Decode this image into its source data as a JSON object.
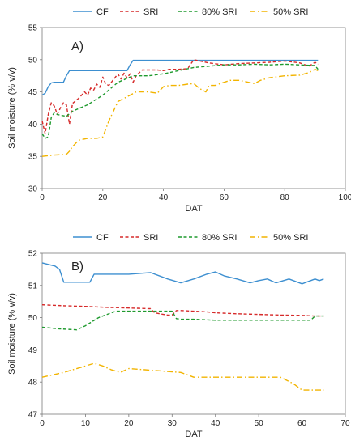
{
  "chart_data": [
    {
      "type": "line",
      "panel_label": "A)",
      "xlabel": "DAT",
      "ylabel": "Soil moisture (% v/v)",
      "xlim": [
        0,
        100
      ],
      "ylim": [
        30,
        55
      ],
      "xticks": [
        "0",
        "20",
        "40",
        "60",
        "80",
        "100"
      ],
      "yticks": [
        "30",
        "35",
        "40",
        "45",
        "50",
        "55"
      ],
      "grid": false,
      "legend": "top",
      "series": [
        {
          "name": "CF",
          "color": "#3d8fd0",
          "dash": "solid",
          "x": [
            0,
            1,
            2,
            3,
            4,
            7,
            8,
            9,
            28,
            29,
            30,
            50,
            70,
            91
          ],
          "y": [
            44.5,
            44.8,
            45.8,
            46.4,
            46.5,
            46.5,
            47.5,
            48.3,
            48.3,
            49.2,
            49.9,
            49.9,
            49.9,
            49.9
          ]
        },
        {
          "name": "SRI",
          "color": "#d62a2a",
          "dash": "dashed",
          "x": [
            0,
            1,
            2,
            3,
            4,
            5,
            6,
            7,
            8,
            9,
            10,
            12,
            14,
            15,
            16,
            17,
            18,
            19,
            20,
            21,
            22,
            24,
            25,
            26,
            27,
            28,
            29,
            30,
            31,
            33,
            35,
            38,
            40,
            42,
            45,
            48,
            50,
            55,
            60,
            65,
            70,
            75,
            80,
            85,
            88,
            90,
            91
          ],
          "y": [
            40.5,
            38.5,
            41.5,
            43.3,
            42.8,
            41.5,
            42.5,
            43.3,
            43.0,
            40.0,
            43.2,
            44.0,
            45.0,
            44.5,
            45.6,
            45.3,
            46.2,
            45.7,
            47.3,
            46.2,
            46.0,
            47.2,
            47.8,
            47.0,
            47.9,
            47.2,
            47.8,
            46.5,
            47.5,
            48.4,
            48.4,
            48.4,
            48.3,
            48.5,
            48.5,
            48.6,
            50.0,
            49.5,
            49.2,
            49.4,
            49.5,
            49.6,
            49.8,
            49.5,
            49.0,
            49.6,
            49.3
          ]
        },
        {
          "name": "80% SRI",
          "color": "#1f9a2e",
          "dash": "dashed",
          "x": [
            0,
            1,
            2,
            3,
            4,
            5,
            8,
            10,
            15,
            20,
            25,
            30,
            35,
            40,
            45,
            50,
            55,
            60,
            65,
            70,
            75,
            80,
            85,
            90,
            91
          ],
          "y": [
            38.5,
            37.8,
            38.0,
            41.0,
            41.8,
            41.5,
            41.2,
            42.0,
            43.0,
            44.5,
            46.5,
            47.5,
            47.5,
            47.8,
            48.3,
            48.8,
            49.0,
            49.2,
            49.2,
            49.3,
            49.2,
            49.3,
            49.2,
            49.1,
            48.5
          ]
        },
        {
          "name": "50% SRI",
          "color": "#f2b400",
          "dash": "dashdot",
          "x": [
            0,
            4,
            8,
            9,
            10,
            12,
            15,
            18,
            20,
            22,
            24,
            25,
            27,
            29,
            31,
            35,
            38,
            40,
            42,
            45,
            48,
            50,
            52,
            54,
            55,
            57,
            60,
            62,
            65,
            70,
            72,
            75,
            80,
            85,
            88,
            90,
            91
          ],
          "y": [
            35.0,
            35.2,
            35.3,
            35.8,
            36.5,
            37.5,
            37.8,
            37.8,
            38.0,
            40.5,
            42.5,
            43.5,
            44.0,
            44.5,
            45.0,
            45.0,
            44.8,
            45.8,
            46.0,
            46.0,
            46.2,
            46.3,
            45.5,
            45.0,
            46.0,
            46.0,
            46.5,
            46.8,
            46.8,
            46.3,
            46.8,
            47.2,
            47.5,
            47.6,
            48.0,
            48.5,
            48.3
          ]
        }
      ]
    },
    {
      "type": "line",
      "panel_label": "B)",
      "xlabel": "DAT",
      "ylabel": "Soil moisture (% v/v)",
      "xlim": [
        0,
        70
      ],
      "ylim": [
        47,
        52
      ],
      "xticks": [
        "0",
        "10",
        "20",
        "30",
        "40",
        "50",
        "60",
        "70"
      ],
      "yticks": [
        "47",
        "48",
        "49",
        "50",
        "51",
        "52"
      ],
      "grid": false,
      "legend": "top",
      "series": [
        {
          "name": "CF",
          "color": "#3d8fd0",
          "dash": "solid",
          "x": [
            0,
            3,
            4,
            5,
            11,
            12,
            20,
            25,
            29,
            32,
            35,
            38,
            40,
            42,
            45,
            48,
            50,
            52,
            54,
            57,
            60,
            62,
            63,
            64,
            65
          ],
          "y": [
            51.7,
            51.6,
            51.5,
            51.1,
            51.1,
            51.35,
            51.35,
            51.4,
            51.2,
            51.08,
            51.2,
            51.35,
            51.42,
            51.3,
            51.2,
            51.08,
            51.15,
            51.2,
            51.08,
            51.2,
            51.05,
            51.15,
            51.2,
            51.15,
            51.2
          ]
        },
        {
          "name": "SRI",
          "color": "#d62a2a",
          "dash": "dashed",
          "x": [
            0,
            5,
            10,
            15,
            20,
            25,
            26,
            28,
            29,
            30,
            31,
            32,
            35,
            38,
            40,
            45,
            50,
            55,
            60,
            63,
            65
          ],
          "y": [
            50.4,
            50.37,
            50.35,
            50.32,
            50.3,
            50.28,
            50.15,
            50.1,
            50.08,
            50.08,
            50.22,
            50.22,
            50.2,
            50.18,
            50.15,
            50.12,
            50.1,
            50.08,
            50.07,
            50.05,
            50.05
          ]
        },
        {
          "name": "80% SRI",
          "color": "#1f9a2e",
          "dash": "dashed",
          "x": [
            0,
            4,
            8,
            10,
            13,
            17,
            20,
            25,
            29,
            30,
            31,
            32,
            35,
            40,
            45,
            50,
            55,
            60,
            62,
            63,
            65
          ],
          "y": [
            49.7,
            49.65,
            49.62,
            49.75,
            50.0,
            50.2,
            50.2,
            50.2,
            50.2,
            50.2,
            49.97,
            49.95,
            49.95,
            49.92,
            49.92,
            49.92,
            49.92,
            49.92,
            49.92,
            50.05,
            50.05
          ]
        },
        {
          "name": "50% SRI",
          "color": "#f2b400",
          "dash": "dashdot",
          "x": [
            0,
            5,
            10,
            12,
            14,
            16,
            18,
            20,
            25,
            30,
            32,
            35,
            40,
            45,
            50,
            55,
            58,
            60,
            62,
            65
          ],
          "y": [
            48.15,
            48.3,
            48.5,
            48.58,
            48.5,
            48.38,
            48.3,
            48.42,
            48.37,
            48.32,
            48.3,
            48.15,
            48.15,
            48.15,
            48.15,
            48.15,
            47.95,
            47.75,
            47.75,
            47.75
          ]
        }
      ]
    }
  ]
}
